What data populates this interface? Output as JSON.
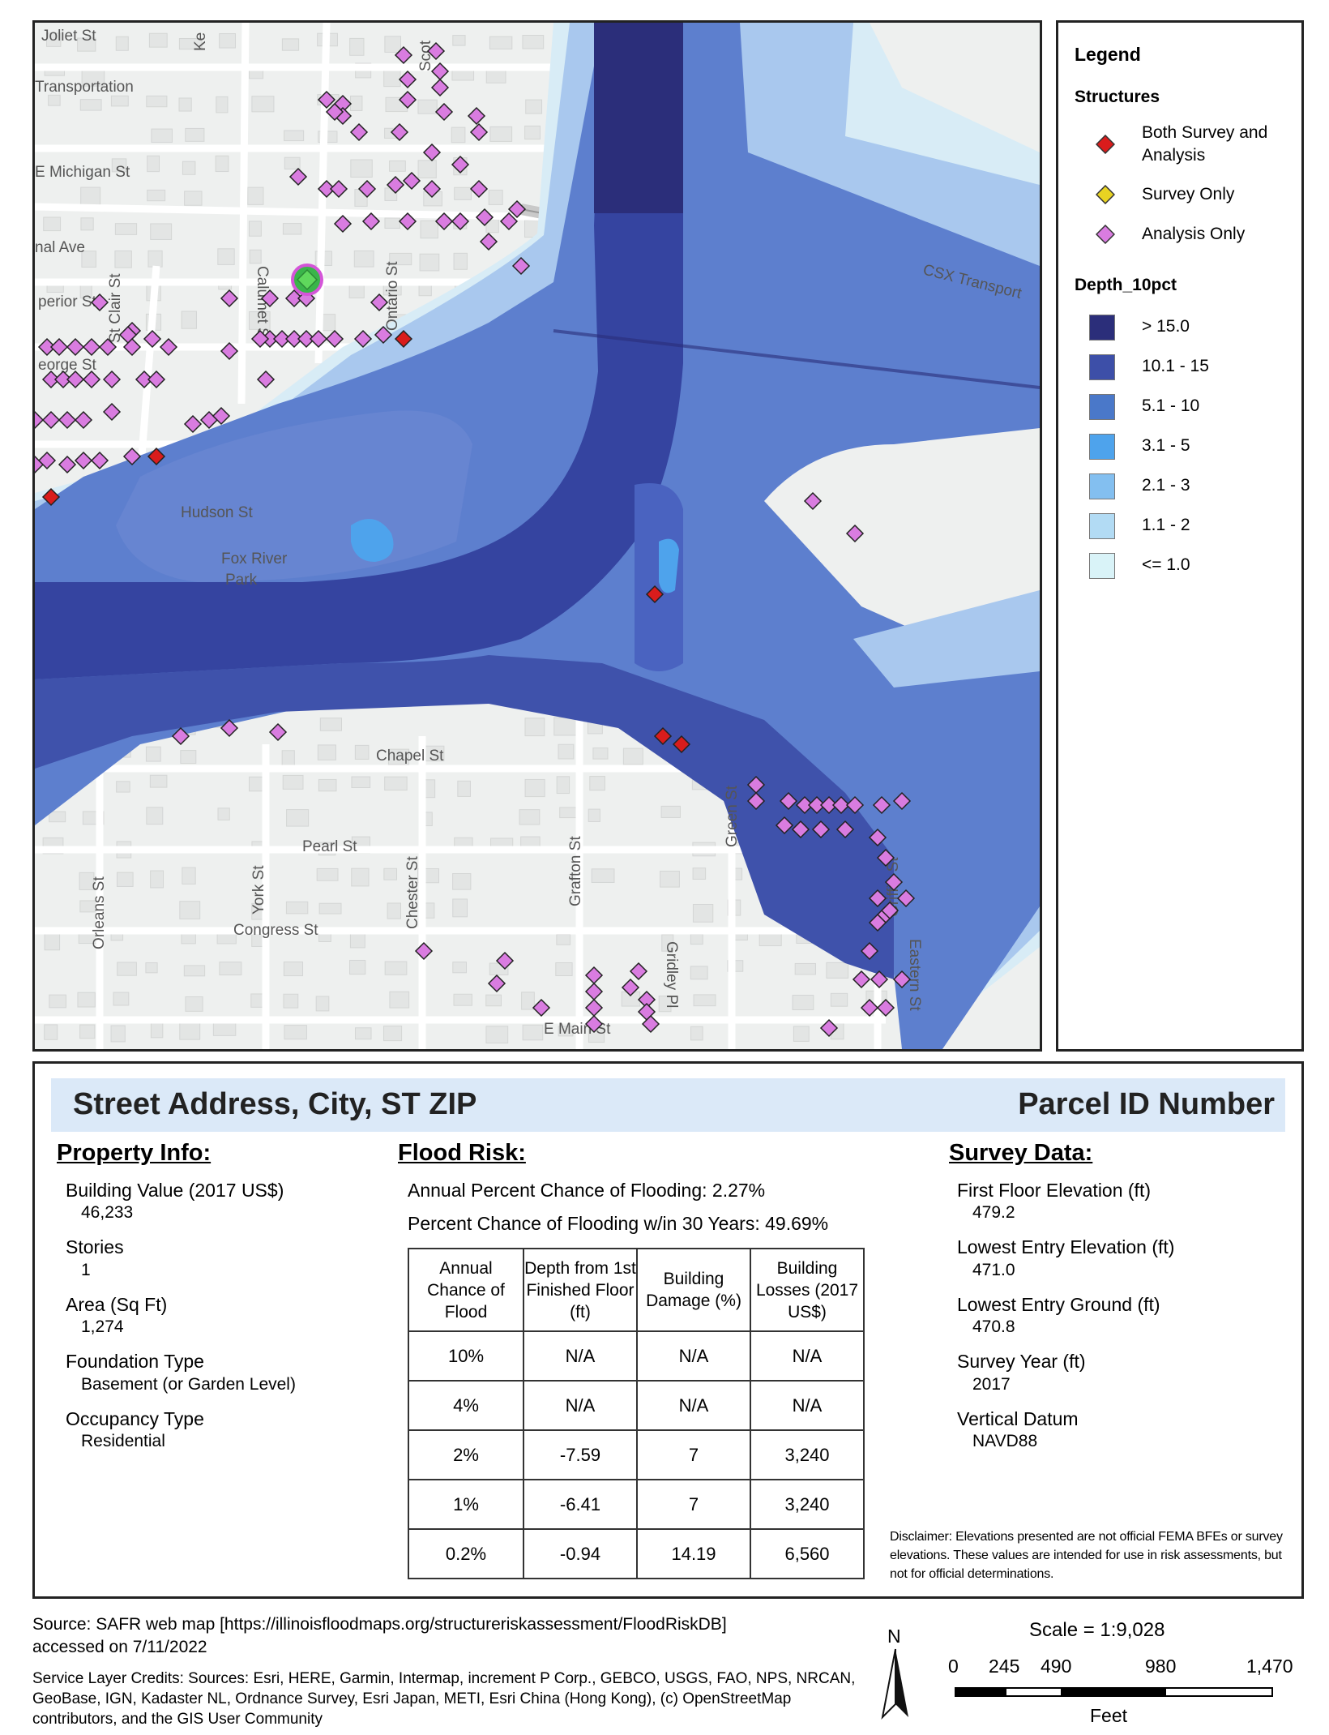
{
  "map": {
    "street_labels": [
      "Joliet St",
      "Transportation",
      "E Michigan St",
      "nal Ave",
      "perior St",
      "eorge St",
      "St Clair St",
      "Calumet St",
      "Ontario St",
      "Hudson St",
      "Fox River",
      "Park",
      "Chapel St",
      "Pearl St",
      "Congress St",
      "E Main St",
      "Orleans St",
      "York St",
      "Chester St",
      "Grafton St",
      "Green St",
      "Griffin St",
      "Gridley Pl",
      "Eastern St",
      "CSX Transport",
      "Scot",
      "Ke"
    ],
    "colors": {
      "river": "#3b4aa0",
      "deep": "#2f3d8c",
      "mid": "#4a63c0",
      "shallow": "#6f96dc",
      "shallower": "#a9c8ee",
      "surface": "#d8ecf6",
      "analysis_marker": "#d97ce0",
      "survey_marker": "#d91c1c",
      "highlight": "#3ab54a"
    }
  },
  "legend": {
    "title": "Legend",
    "structures_heading": "Structures",
    "structures": [
      {
        "label": "Both Survey and Analysis",
        "color": "#d91c1c"
      },
      {
        "label": "Survey Only",
        "color": "#e8d322"
      },
      {
        "label": "Analysis Only",
        "color": "#d97ce0"
      }
    ],
    "depth_heading": "Depth_10pct",
    "depths": [
      {
        "label": "> 15.0",
        "color": "#2b2e7a"
      },
      {
        "label": "10.1 - 15",
        "color": "#3d4fa8"
      },
      {
        "label": "5.1 - 10",
        "color": "#4a78c9"
      },
      {
        "label": "3.1 - 5",
        "color": "#4ea3ec"
      },
      {
        "label": "2.1 - 3",
        "color": "#83bff0"
      },
      {
        "label": "1.1 - 2",
        "color": "#b2dbf4"
      },
      {
        "label": "<= 1.0",
        "color": "#d9f3f8"
      }
    ]
  },
  "panel": {
    "address": "Street Address, City, ST ZIP",
    "parcel": "Parcel ID Number",
    "property": {
      "title": "Property Info:",
      "fields": [
        {
          "label": "Building Value (2017 US$)",
          "value": "46,233"
        },
        {
          "label": "Stories",
          "value": "1"
        },
        {
          "label": "Area (Sq Ft)",
          "value": "1,274"
        },
        {
          "label": "Foundation Type",
          "value": "Basement (or Garden Level)"
        },
        {
          "label": "Occupancy Type",
          "value": "Residential"
        }
      ]
    },
    "flood": {
      "title": "Flood Risk:",
      "annual": "Annual Percent Chance of Flooding: 2.27%",
      "thirty": "Percent Chance of Flooding w/in 30 Years: 49.69%",
      "headers": [
        "Annual Chance of Flood",
        "Depth from 1st Finished Floor (ft)",
        "Building Damage (%)",
        "Building Losses (2017 US$)"
      ],
      "rows": [
        [
          "10%",
          "N/A",
          "N/A",
          "N/A"
        ],
        [
          "4%",
          "N/A",
          "N/A",
          "N/A"
        ],
        [
          "2%",
          "-7.59",
          "7",
          "3,240"
        ],
        [
          "1%",
          "-6.41",
          "7",
          "3,240"
        ],
        [
          "0.2%",
          "-0.94",
          "14.19",
          "6,560"
        ]
      ]
    },
    "survey": {
      "title": "Survey Data:",
      "fields": [
        {
          "label": "First Floor Elevation (ft)",
          "value": "479.2"
        },
        {
          "label": "Lowest Entry Elevation (ft)",
          "value": "471.0"
        },
        {
          "label": "Lowest Entry Ground (ft)",
          "value": "470.8"
        },
        {
          "label": "Survey Year (ft)",
          "value": "2017"
        },
        {
          "label": "Vertical Datum",
          "value": "NAVD88"
        }
      ]
    },
    "disclaimer": "Disclaimer: Elevations presented are not official FEMA BFEs or survey elevations. These values are intended for use in risk assessments, but not for official determinations."
  },
  "footer": {
    "source_line1": "Source: SAFR web map [https://illinoisfloodmaps.org/structureriskassessment/FloodRiskDB]",
    "source_line2": "accessed on 7/11/2022",
    "credits": "Service Layer Credits: Sources: Esri, HERE, Garmin, Intermap, increment P Corp., GEBCO, USGS, FAO, NPS, NRCAN, GeoBase, IGN, Kadaster NL, Ordnance Survey, Esri Japan, METI, Esri China (Hong Kong), (c) OpenStreetMap contributors, and the GIS User Community",
    "north": "N",
    "scale": "Scale = 1:9,028",
    "ticks": [
      "0",
      "245",
      "490",
      "980",
      "1,470"
    ],
    "units": "Feet"
  }
}
